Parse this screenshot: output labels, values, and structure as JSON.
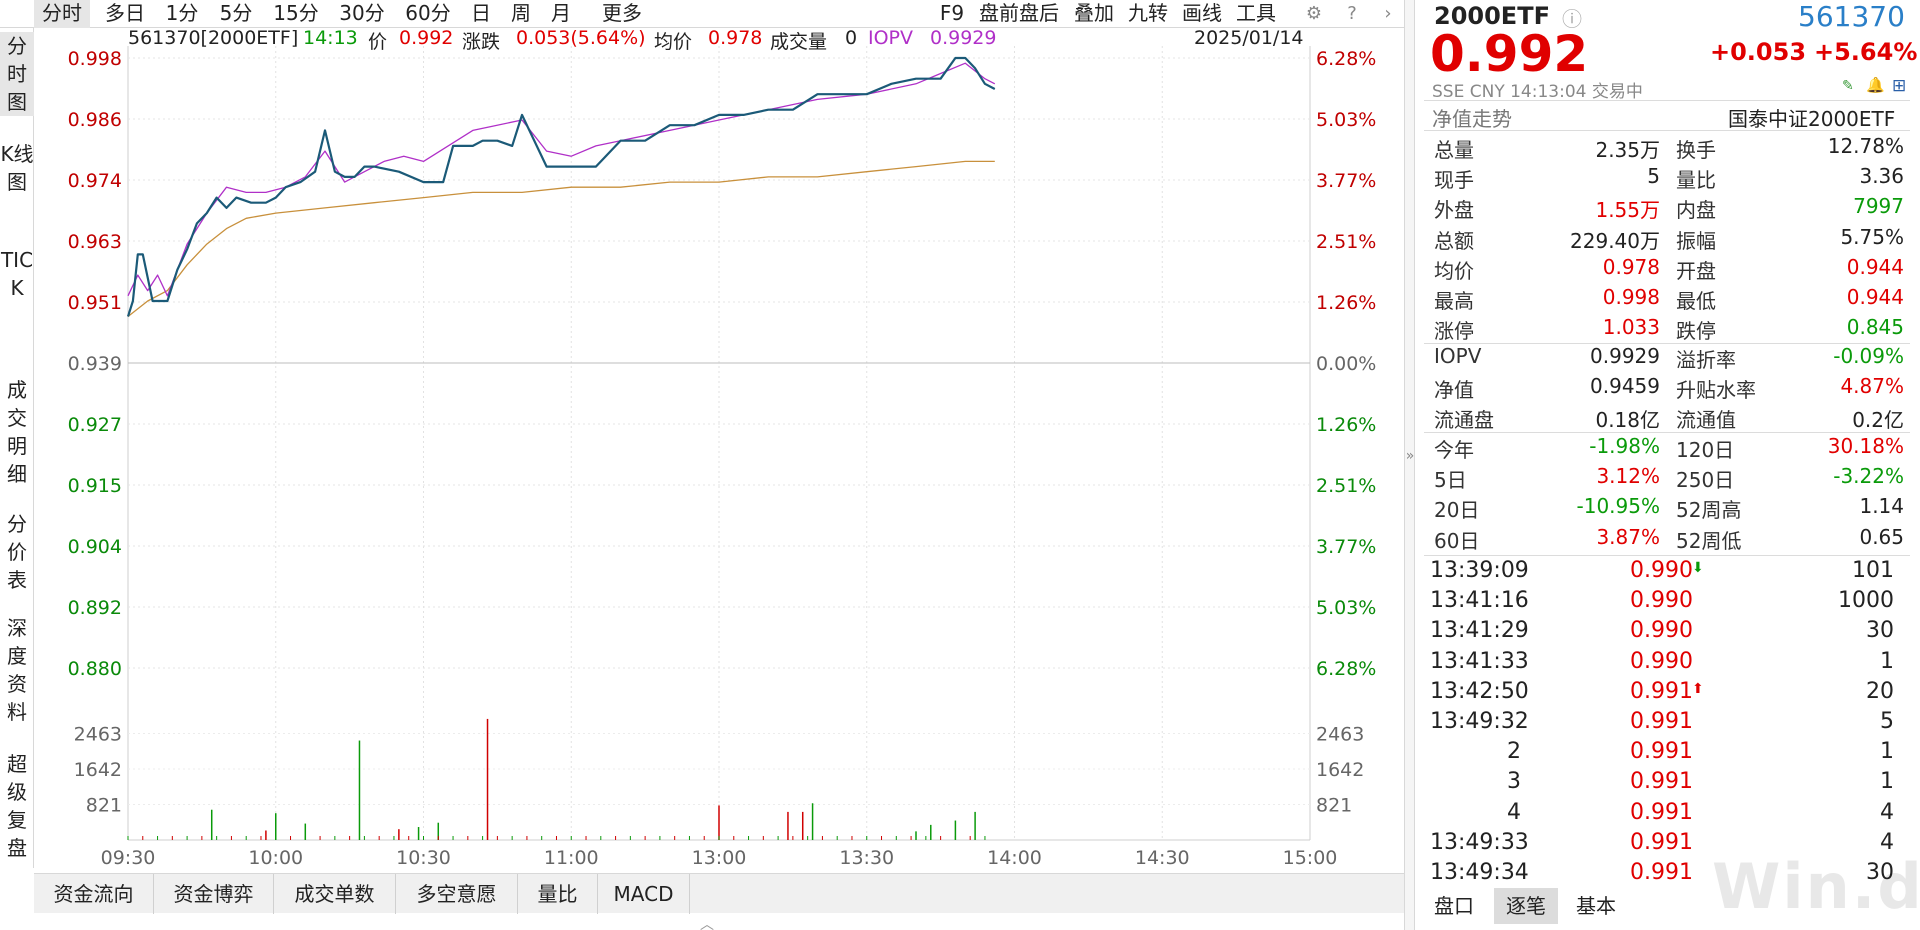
{
  "toolbar": {
    "tabs": [
      "分时",
      "多日",
      "1分",
      "5分",
      "15分",
      "30分",
      "60分",
      "日",
      "周",
      "月",
      "更多"
    ],
    "right": [
      "F9",
      "盘前盘后",
      "叠加",
      "九转",
      "画线",
      "工具"
    ]
  },
  "left_tabs": [
    "分时图",
    "K线图",
    "TICK",
    "成交明细",
    "分价表",
    "深度资料",
    "超级复盘"
  ],
  "header": {
    "code_name": "561370[2000ETF]",
    "time": "14:13",
    "price_label": "价",
    "price": "0.992",
    "change_label": "涨跌",
    "change": "0.053(5.64%)",
    "avg_label": "均价",
    "avg": "0.978",
    "vol_label": "成交量",
    "vol": "0",
    "iopv_label": "IOPV",
    "iopv": "0.9929",
    "date": "2025/01/14"
  },
  "colors": {
    "price": "#1b5a78",
    "iopv": "#b030c8",
    "avg": "#c8903c",
    "up": "#e00000",
    "down": "#0a9a0a"
  },
  "chart_data": {
    "type": "line",
    "prev_close": 0.939,
    "y_ticks_left": [
      "0.998",
      "0.986",
      "0.974",
      "0.963",
      "0.951",
      "0.939",
      "0.927",
      "0.915",
      "0.904",
      "0.892",
      "0.880"
    ],
    "y_ticks_right": [
      "6.28%",
      "5.03%",
      "3.77%",
      "2.51%",
      "1.26%",
      "0.00%",
      "1.26%",
      "2.51%",
      "3.77%",
      "5.03%",
      "6.28%"
    ],
    "ylim": [
      0.88,
      0.998
    ],
    "x_ticks": [
      "09:30",
      "10:00",
      "10:30",
      "11:00",
      "13:00",
      "13:30",
      "14:00",
      "14:30",
      "15:00"
    ],
    "vol_ticks": [
      "2463",
      "1642",
      "821"
    ],
    "series": [
      {
        "name": "价",
        "x": [
          0,
          1,
          2,
          3,
          5,
          6,
          8,
          10,
          12,
          14,
          16,
          18,
          20,
          22,
          25,
          28,
          30,
          32,
          35,
          38,
          40,
          42,
          44,
          46,
          48,
          50,
          55,
          60,
          64,
          66,
          68,
          70,
          72,
          75,
          78,
          80,
          85,
          90,
          95,
          100,
          105,
          110,
          115,
          120,
          125,
          130,
          135,
          140,
          145,
          150,
          155,
          160,
          163,
          165,
          168,
          170,
          172,
          174,
          176
        ],
        "values": [
          0.948,
          0.951,
          0.96,
          0.96,
          0.951,
          0.951,
          0.951,
          0.957,
          0.961,
          0.966,
          0.968,
          0.971,
          0.969,
          0.971,
          0.97,
          0.97,
          0.971,
          0.973,
          0.974,
          0.976,
          0.984,
          0.976,
          0.975,
          0.975,
          0.977,
          0.977,
          0.976,
          0.974,
          0.974,
          0.981,
          0.981,
          0.981,
          0.982,
          0.982,
          0.981,
          0.987,
          0.977,
          0.977,
          0.977,
          0.982,
          0.982,
          0.985,
          0.985,
          0.987,
          0.987,
          0.988,
          0.988,
          0.991,
          0.991,
          0.991,
          0.993,
          0.994,
          0.994,
          0.994,
          0.998,
          0.998,
          0.996,
          0.993,
          0.992
        ]
      },
      {
        "name": "IOPV",
        "x": [
          0,
          2,
          4,
          6,
          8,
          12,
          16,
          20,
          24,
          28,
          32,
          36,
          40,
          44,
          48,
          52,
          56,
          60,
          70,
          80,
          85,
          90,
          95,
          100,
          110,
          120,
          130,
          140,
          150,
          160,
          165,
          170,
          174,
          176
        ],
        "values": [
          0.952,
          0.956,
          0.953,
          0.956,
          0.952,
          0.962,
          0.968,
          0.973,
          0.972,
          0.972,
          0.973,
          0.975,
          0.98,
          0.974,
          0.976,
          0.978,
          0.979,
          0.978,
          0.984,
          0.986,
          0.98,
          0.979,
          0.981,
          0.982,
          0.984,
          0.986,
          0.988,
          0.99,
          0.991,
          0.993,
          0.995,
          0.997,
          0.994,
          0.993
        ]
      },
      {
        "name": "均价",
        "x": [
          0,
          4,
          8,
          12,
          16,
          20,
          24,
          30,
          40,
          50,
          60,
          70,
          80,
          90,
          100,
          110,
          120,
          130,
          140,
          150,
          160,
          170,
          176
        ],
        "values": [
          0.948,
          0.951,
          0.953,
          0.958,
          0.962,
          0.965,
          0.967,
          0.968,
          0.969,
          0.97,
          0.971,
          0.972,
          0.972,
          0.973,
          0.973,
          0.974,
          0.974,
          0.975,
          0.975,
          0.976,
          0.977,
          0.978,
          0.978
        ]
      }
    ],
    "volume": [
      {
        "x": 17,
        "v": 700,
        "up": false
      },
      {
        "x": 28,
        "v": 220,
        "up": true
      },
      {
        "x": 30,
        "v": 620,
        "up": false
      },
      {
        "x": 36,
        "v": 380,
        "up": false
      },
      {
        "x": 47,
        "v": 2300,
        "up": false
      },
      {
        "x": 55,
        "v": 250,
        "up": true
      },
      {
        "x": 59,
        "v": 300,
        "up": false
      },
      {
        "x": 63,
        "v": 400,
        "up": false
      },
      {
        "x": 73,
        "v": 2800,
        "up": true
      },
      {
        "x": 120,
        "v": 800,
        "up": true
      },
      {
        "x": 134,
        "v": 650,
        "up": true
      },
      {
        "x": 137,
        "v": 650,
        "up": true
      },
      {
        "x": 139,
        "v": 850,
        "up": false
      },
      {
        "x": 160,
        "v": 200,
        "up": false
      },
      {
        "x": 163,
        "v": 350,
        "up": false
      },
      {
        "x": 168,
        "v": 450,
        "up": false
      },
      {
        "x": 172,
        "v": 650,
        "up": false
      }
    ]
  },
  "bottom_tabs": [
    "资金流向",
    "资金博弈",
    "成交单数",
    "多空意愿",
    "量比",
    "MACD"
  ],
  "quote": {
    "name": "2000ETF",
    "code": "561370",
    "price": "0.992",
    "change": "+0.053",
    "change_pct": "+5.64%",
    "sub": "SSE CNY 14:13:04 交易中",
    "nav_trend_label": "净值走势",
    "fund_name": "国泰中证2000ETF"
  },
  "stats": [
    [
      {
        "l": "总量",
        "v": "2.35万",
        "c": "dark"
      },
      {
        "l": "换手",
        "v": "12.78%",
        "c": "dark"
      }
    ],
    [
      {
        "l": "现手",
        "v": "5",
        "c": "dark"
      },
      {
        "l": "量比",
        "v": "3.36",
        "c": "dark"
      }
    ],
    [
      {
        "l": "外盘",
        "v": "1.55万",
        "c": "red"
      },
      {
        "l": "内盘",
        "v": "7997",
        "c": "green"
      }
    ],
    [
      {
        "l": "总额",
        "v": "229.40万",
        "c": "dark"
      },
      {
        "l": "振幅",
        "v": "5.75%",
        "c": "dark"
      }
    ],
    [
      {
        "l": "均价",
        "v": "0.978",
        "c": "red"
      },
      {
        "l": "开盘",
        "v": "0.944",
        "c": "red"
      }
    ],
    [
      {
        "l": "最高",
        "v": "0.998",
        "c": "red"
      },
      {
        "l": "最低",
        "v": "0.944",
        "c": "red"
      }
    ],
    [
      {
        "l": "涨停",
        "v": "1.033",
        "c": "red"
      },
      {
        "l": "跌停",
        "v": "0.845",
        "c": "green"
      }
    ]
  ],
  "stats2": [
    [
      {
        "l": "IOPV",
        "v": "0.9929",
        "c": "dark"
      },
      {
        "l": "溢折率",
        "v": "-0.09%",
        "c": "green"
      }
    ],
    [
      {
        "l": "净值",
        "v": "0.9459",
        "c": "dark"
      },
      {
        "l": "升贴水率",
        "v": "4.87%",
        "c": "red"
      }
    ],
    [
      {
        "l": "流通盘",
        "v": "0.18亿",
        "c": "dark"
      },
      {
        "l": "流通值",
        "v": "0.2亿",
        "c": "dark"
      }
    ]
  ],
  "stats3": [
    [
      {
        "l": "今年",
        "v": "-1.98%",
        "c": "green"
      },
      {
        "l": "120日",
        "v": "30.18%",
        "c": "red"
      }
    ],
    [
      {
        "l": "5日",
        "v": "3.12%",
        "c": "red"
      },
      {
        "l": "250日",
        "v": "-3.22%",
        "c": "green"
      }
    ],
    [
      {
        "l": "20日",
        "v": "-10.95%",
        "c": "green"
      },
      {
        "l": "52周高",
        "v": "1.14",
        "c": "dark"
      }
    ],
    [
      {
        "l": "60日",
        "v": "3.87%",
        "c": "red"
      },
      {
        "l": "52周低",
        "v": "0.65",
        "c": "dark"
      }
    ]
  ],
  "ticks": [
    {
      "t": "13:39:09",
      "p": "0.990",
      "arrow": "down",
      "v": "101"
    },
    {
      "t": "13:41:16",
      "p": "0.990",
      "arrow": "",
      "v": "1000"
    },
    {
      "t": "13:41:29",
      "p": "0.990",
      "arrow": "",
      "v": "30"
    },
    {
      "t": "13:41:33",
      "p": "0.990",
      "arrow": "",
      "v": "1"
    },
    {
      "t": "13:42:50",
      "p": "0.991",
      "arrow": "up",
      "v": "20"
    },
    {
      "t": "13:49:32",
      "p": "0.991",
      "arrow": "",
      "v": "5"
    },
    {
      "t": "2",
      "p": "0.991",
      "arrow": "",
      "v": "1"
    },
    {
      "t": "3",
      "p": "0.991",
      "arrow": "",
      "v": "1"
    },
    {
      "t": "4",
      "p": "0.991",
      "arrow": "",
      "v": "4"
    },
    {
      "t": "13:49:33",
      "p": "0.991",
      "arrow": "",
      "v": "4"
    },
    {
      "t": "13:49:34",
      "p": "0.991",
      "arrow": "",
      "v": "30"
    }
  ],
  "right_bottom_tabs": [
    "盘口",
    "逐笔",
    "基本"
  ],
  "watermark": "Win.d"
}
